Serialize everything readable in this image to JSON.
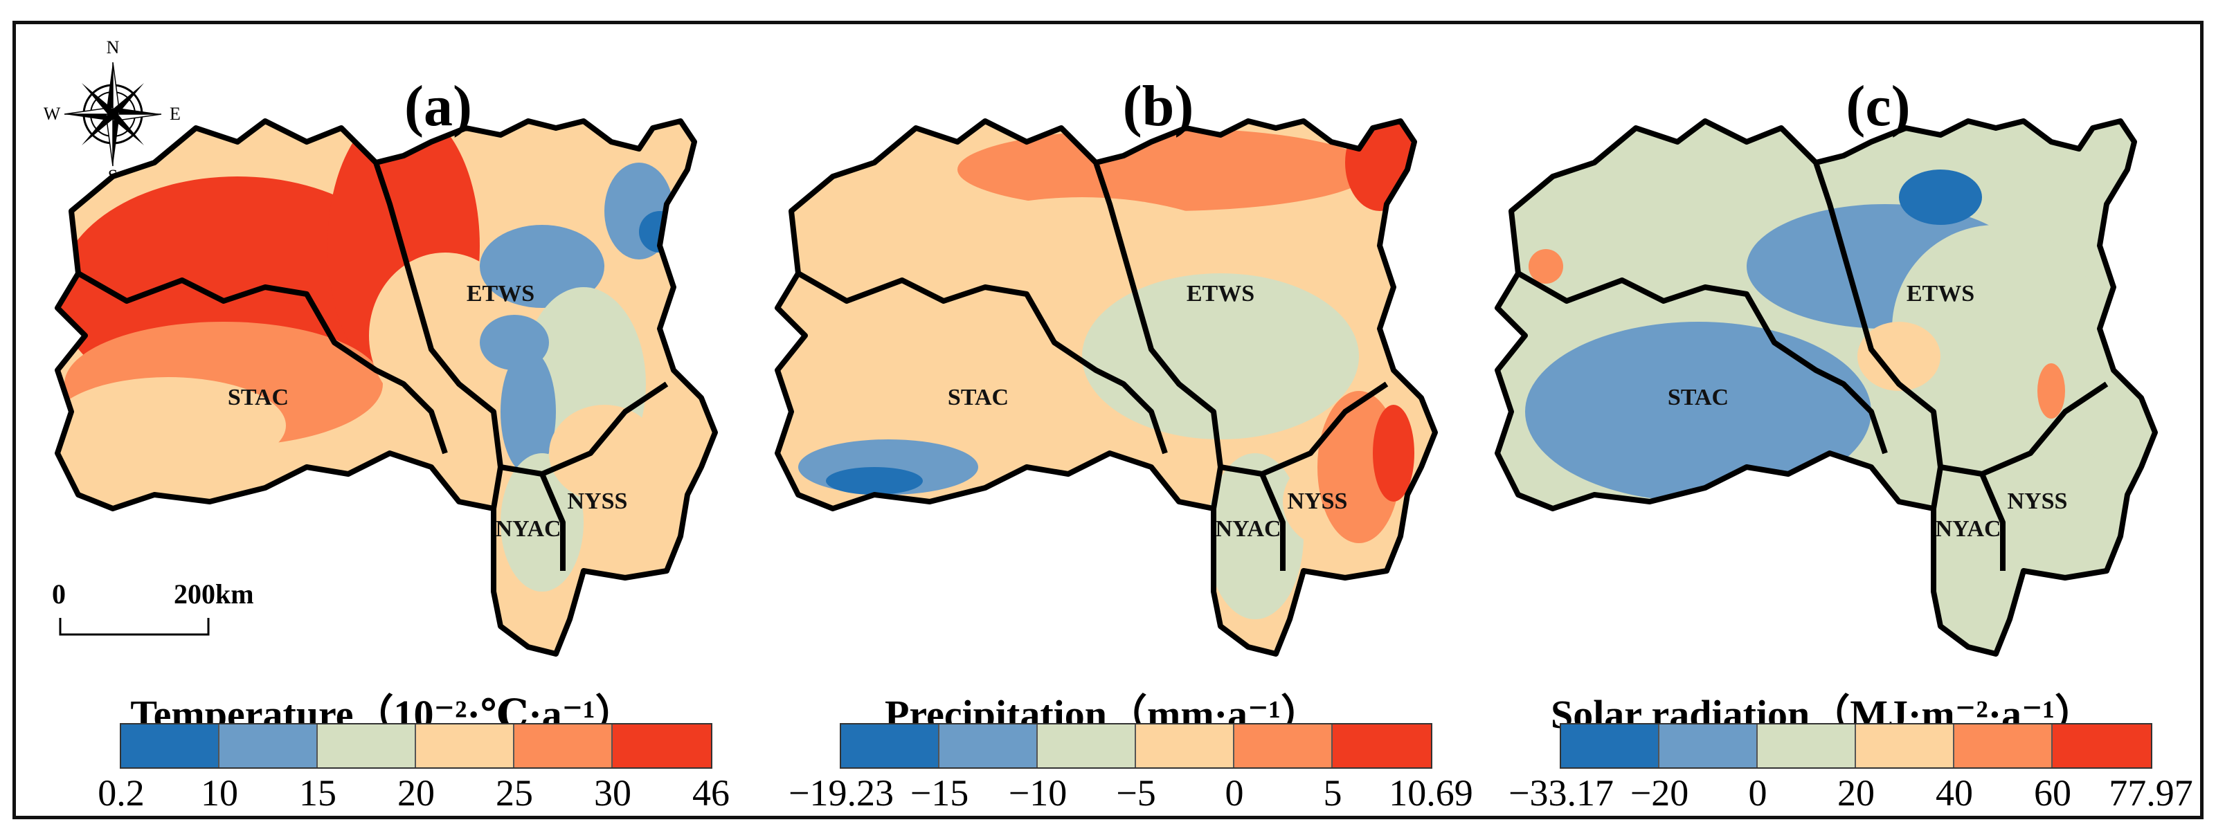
{
  "panels": [
    {
      "label": "(a)",
      "title": "Temperature（10⁻²·℃·a⁻¹）",
      "ticks": [
        "0.2",
        "10",
        "15",
        "20",
        "25",
        "30",
        "46"
      ],
      "colors": [
        "#2171b5",
        "#6c9cc7",
        "#d5dfc1",
        "#fdd49e",
        "#fc8d59",
        "#f03b20"
      ],
      "regions": [
        "ETWS",
        "STAC",
        "NYAC",
        "NYSS"
      ]
    },
    {
      "label": "(b)",
      "title": "Precipitation（mm·a⁻¹）",
      "ticks": [
        "−19.23",
        "−15",
        "−10",
        "−5",
        "0",
        "5",
        "10.69"
      ],
      "colors": [
        "#2171b5",
        "#6c9cc7",
        "#d5dfc1",
        "#fdd49e",
        "#fc8d59",
        "#f03b20"
      ],
      "regions": [
        "ETWS",
        "STAC",
        "NYAC",
        "NYSS"
      ]
    },
    {
      "label": "(c)",
      "title": "Solar radiation（MJ·m⁻²·a⁻¹）",
      "ticks": [
        "−33.17",
        "−20",
        "0",
        "20",
        "40",
        "60",
        "77.97"
      ],
      "colors": [
        "#2171b5",
        "#6c9cc7",
        "#d5dfc1",
        "#fdd49e",
        "#fc8d59",
        "#f03b20"
      ],
      "regions": [
        "ETWS",
        "STAC",
        "NYAC",
        "NYSS"
      ]
    }
  ],
  "compass": {
    "n": "N",
    "s": "S",
    "e": "E",
    "w": "W"
  },
  "scale_bar": {
    "start": "0",
    "end": "200km"
  }
}
